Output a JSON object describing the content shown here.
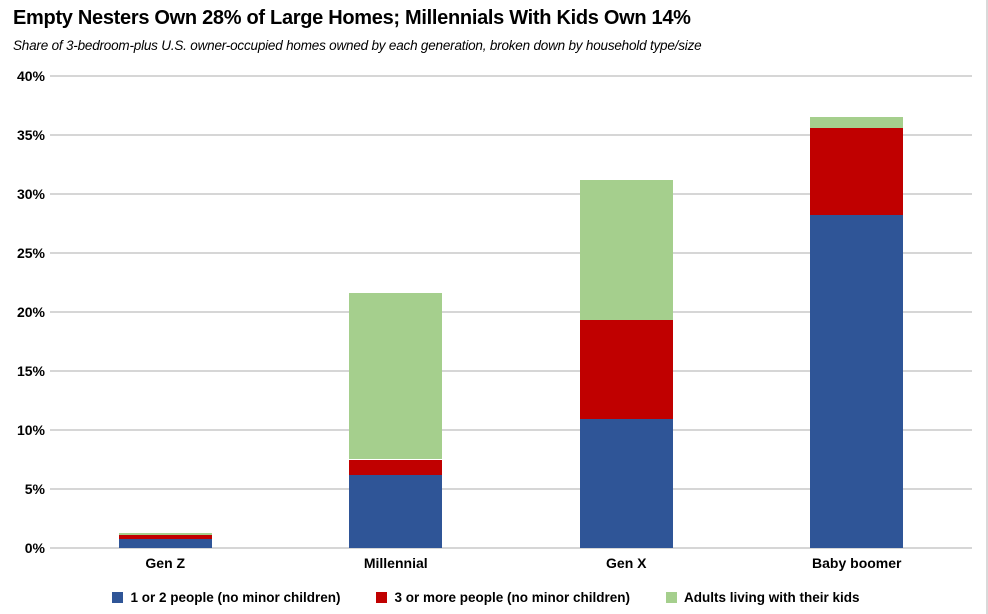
{
  "header": {
    "title": "Empty Nesters Own 28% of Large Homes; Millennials With Kids Own 14%",
    "subtitle": "Share of 3-bedroom-plus U.S. owner-occupied homes owned by each generation, broken down by household type/size"
  },
  "chart_data": {
    "type": "bar",
    "stacked": true,
    "title": "Empty Nesters Own 28% of Large Homes; Millennials With Kids Own 14%",
    "subtitle": "Share of 3-bedroom-plus U.S. owner-occupied homes owned by each generation, broken down by household type/size",
    "categories": [
      "Gen Z",
      "Millennial",
      "Gen X",
      "Baby boomer"
    ],
    "series": [
      {
        "name": "1 or 2 people (no minor children)",
        "color": "#2f5597",
        "values": [
          0.8,
          6.2,
          10.9,
          28.2
        ]
      },
      {
        "name": "3 or more people (no minor children)",
        "color": "#c00000",
        "values": [
          0.3,
          1.3,
          8.4,
          7.4
        ]
      },
      {
        "name": "Adults living with their kids",
        "color": "#a5cf8d",
        "values": [
          0.2,
          14.1,
          11.9,
          0.9
        ]
      }
    ],
    "totals_percent": [
      1.3,
      21.6,
      31.2,
      36.5
    ],
    "ylim": [
      0,
      40
    ],
    "ytick_step": 5,
    "ytick_labels": [
      "0%",
      "5%",
      "10%",
      "15%",
      "20%",
      "25%",
      "30%",
      "35%",
      "40%"
    ],
    "xlabel": "",
    "ylabel": "",
    "grid": true,
    "gridline_color": "#d6d6d6",
    "legend_position": "bottom"
  }
}
